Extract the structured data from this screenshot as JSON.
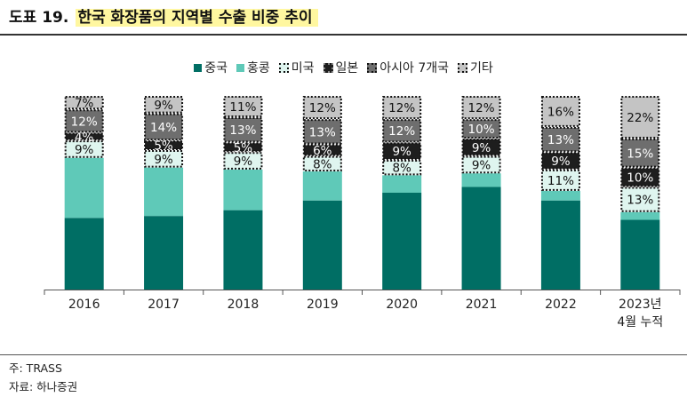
{
  "header": {
    "figure_number": "도표 19.",
    "title": "한국 화장품의 지역별 수출 비중 추이"
  },
  "legend": {
    "china": "중국",
    "hongkong": "홍콩",
    "us": "미국",
    "japan": "일본",
    "asia7": "아시아 7개국",
    "etc": "기타"
  },
  "notes": {
    "source_note": "주: TRASS",
    "data_source": "자료: 하나증권"
  },
  "chart_data": {
    "type": "bar",
    "stacked": true,
    "normalized_to": 100,
    "title": "한국 화장품의 지역별 수출 비중 추이",
    "categories": [
      [
        "2016"
      ],
      [
        "2017"
      ],
      [
        "2018"
      ],
      [
        "2019"
      ],
      [
        "2020"
      ],
      [
        "2021"
      ],
      [
        "2022"
      ],
      [
        "2023년",
        "4월 누적"
      ]
    ],
    "ylim": [
      0,
      100
    ],
    "series": [
      {
        "name": "중국",
        "key": "china",
        "values": [
          37,
          38,
          41,
          46,
          50,
          53,
          46,
          36
        ]
      },
      {
        "name": "홍콩",
        "key": "hongkong",
        "values": [
          31,
          25,
          21,
          15,
          9,
          7,
          5,
          4
        ]
      },
      {
        "name": "미국",
        "key": "us",
        "values": [
          9,
          9,
          9,
          8,
          8,
          9,
          11,
          13
        ]
      },
      {
        "name": "일본",
        "key": "japan",
        "values": [
          4,
          5,
          5,
          6,
          9,
          9,
          9,
          10
        ]
      },
      {
        "name": "아시아 7개국",
        "key": "asia7",
        "values": [
          12,
          14,
          13,
          13,
          12,
          10,
          13,
          15
        ]
      },
      {
        "name": "기타",
        "key": "etc",
        "values": [
          7,
          9,
          11,
          12,
          12,
          12,
          16,
          22
        ]
      }
    ],
    "data_labels": {
      "us": [
        "9%",
        "9%",
        "9%",
        "8%",
        "8%",
        "9%",
        "11%",
        "13%"
      ],
      "japan": [
        "4%",
        "5%",
        "5%",
        "6%",
        "9%",
        "9%",
        "9%",
        "10%"
      ],
      "asia7": [
        "12%",
        "14%",
        "13%",
        "13%",
        "12%",
        "10%",
        "13%",
        "15%"
      ],
      "etc": [
        "7%",
        "9%",
        "11%",
        "12%",
        "12%",
        "12%",
        "16%",
        "22%"
      ]
    },
    "colors": {
      "china": "#006e64",
      "hongkong": "#5fc9b8",
      "us": "#dff5ef",
      "japan": "#1e1e1e",
      "asia7": "#6e6e6e",
      "etc": "#c4c4c4"
    },
    "grid": false,
    "legend_position": "top-center"
  }
}
